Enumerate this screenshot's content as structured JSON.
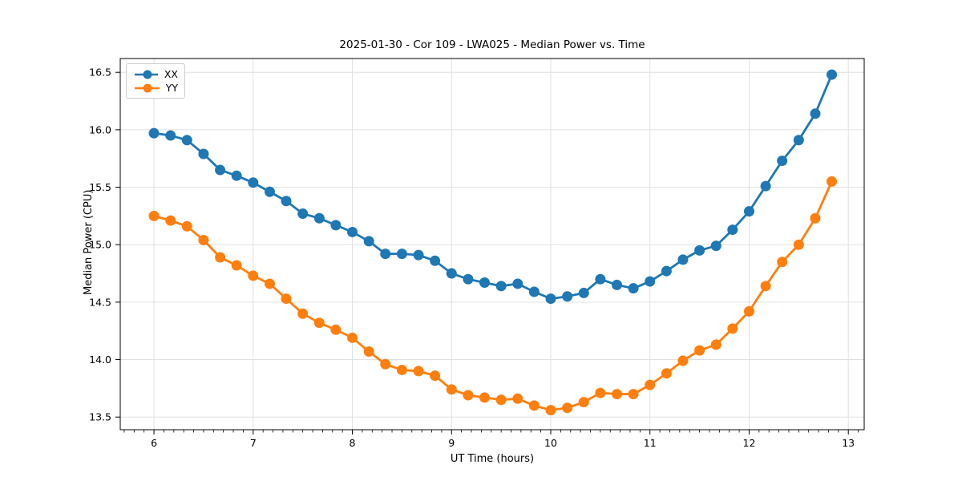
{
  "chart_data": {
    "type": "line",
    "title": "2025-01-30 - Cor 109 - LWA025 - Median Power vs. Time",
    "xlabel": "UT Time (hours)",
    "ylabel": "Median Power (CPU)",
    "x": [
      6.0,
      6.167,
      6.333,
      6.5,
      6.667,
      6.833,
      7.0,
      7.167,
      7.333,
      7.5,
      7.667,
      7.833,
      8.0,
      8.167,
      8.333,
      8.5,
      8.667,
      8.833,
      9.0,
      9.167,
      9.333,
      9.5,
      9.667,
      9.833,
      10.0,
      10.167,
      10.333,
      10.5,
      10.667,
      10.833,
      11.0,
      11.167,
      11.333,
      11.5,
      11.667,
      11.833,
      12.0,
      12.167,
      12.333,
      12.5,
      12.667,
      12.833
    ],
    "series": [
      {
        "name": "XX",
        "color": "#1f77b4",
        "values": [
          15.97,
          15.95,
          15.91,
          15.79,
          15.65,
          15.6,
          15.54,
          15.46,
          15.38,
          15.27,
          15.23,
          15.17,
          15.11,
          15.03,
          14.92,
          14.92,
          14.91,
          14.86,
          14.75,
          14.7,
          14.67,
          14.64,
          14.66,
          14.59,
          14.53,
          14.55,
          14.58,
          14.7,
          14.65,
          14.62,
          14.68,
          14.77,
          14.87,
          14.95,
          14.99,
          15.13,
          15.29,
          15.51,
          15.73,
          15.91,
          16.14,
          16.48
        ]
      },
      {
        "name": "YY",
        "color": "#ff7f0e",
        "values": [
          15.25,
          15.21,
          15.16,
          15.04,
          14.89,
          14.82,
          14.73,
          14.66,
          14.53,
          14.4,
          14.32,
          14.26,
          14.19,
          14.07,
          13.96,
          13.91,
          13.9,
          13.86,
          13.74,
          13.69,
          13.67,
          13.65,
          13.66,
          13.6,
          13.56,
          13.58,
          13.63,
          13.71,
          13.7,
          13.7,
          13.78,
          13.88,
          13.99,
          14.08,
          14.13,
          14.27,
          14.42,
          14.64,
          14.85,
          15.0,
          15.23,
          15.55
        ]
      }
    ],
    "xlim": [
      5.66,
      13.16
    ],
    "ylim": [
      13.39,
      16.62
    ],
    "xticks": [
      6,
      7,
      8,
      9,
      10,
      11,
      12,
      13
    ],
    "yticks": [
      13.5,
      14.0,
      14.5,
      15.0,
      15.5,
      16.0,
      16.5
    ],
    "x_minor_step": 0.1,
    "grid": true,
    "grid_color": "#e0e0e0",
    "legend_position": "upper-left",
    "marker": "circle"
  }
}
